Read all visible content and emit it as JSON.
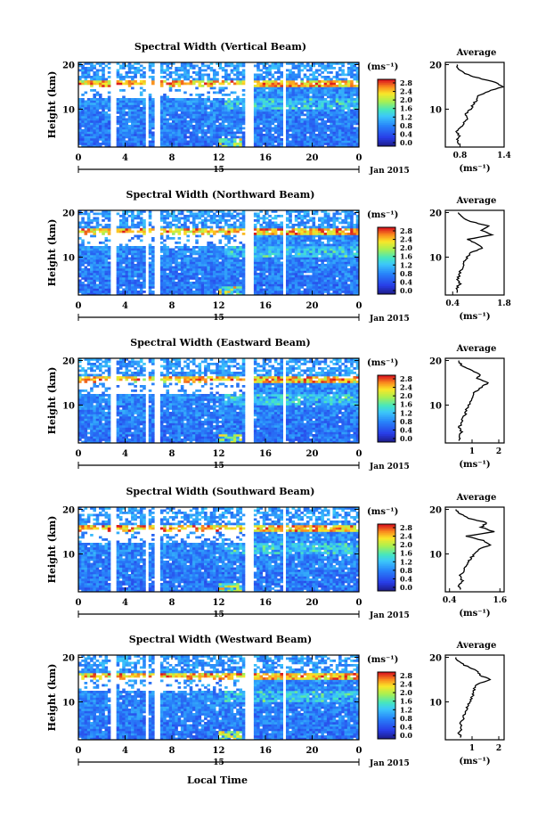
{
  "figure": {
    "xlabel": "Local Time",
    "date_label": "Jan 2015",
    "day_label": "15",
    "colorbar_unit": "(ms⁻¹)",
    "avg_title": "Average",
    "avg_unit": "(ms⁻¹)"
  },
  "chart_data": [
    {
      "type": "heatmap",
      "title": "Spectral Width (Vertical Beam)",
      "ylabel": "Height (km)",
      "xlim": [
        0,
        24
      ],
      "ylim": [
        1.5,
        20.5
      ],
      "xticks": [
        "0",
        "4",
        "8",
        "12",
        "16",
        "20",
        "0"
      ],
      "yticks": [
        10,
        20
      ],
      "colorbar_ticks": [
        "0.0",
        "0.4",
        "0.8",
        "1.2",
        "1.6",
        "2.0",
        "2.4",
        "2.8"
      ],
      "colorbar_range": [
        0.0,
        2.8
      ],
      "gaps_hours": [
        [
          1.9,
          2.1
        ],
        [
          2.8,
          3.2
        ],
        [
          4.4,
          4.6
        ],
        [
          5.8,
          6.1
        ],
        [
          6.5,
          7.0
        ],
        [
          14.3,
          15.0
        ],
        [
          17.4,
          17.8
        ]
      ],
      "average_profile": {
        "xlim": [
          0.6,
          1.4
        ],
        "xticks": [
          "0.8",
          "1.4"
        ],
        "yticks": [
          10,
          20
        ],
        "height_km": [
          2,
          3,
          4,
          5,
          6,
          7,
          8,
          9,
          10,
          11,
          12,
          13,
          14,
          15,
          16,
          17,
          18,
          19,
          20
        ],
        "value": [
          0.8,
          0.76,
          0.79,
          0.74,
          0.81,
          0.85,
          0.9,
          0.88,
          0.94,
          0.98,
          1.02,
          1.05,
          1.18,
          1.38,
          1.3,
          1.05,
          0.86,
          0.78,
          0.76
        ]
      }
    },
    {
      "type": "heatmap",
      "title": "Spectral Width (Northward Beam)",
      "ylabel": "Height (km)",
      "xlim": [
        0,
        24
      ],
      "ylim": [
        1.5,
        20.5
      ],
      "xticks": [
        "0",
        "4",
        "8",
        "12",
        "16",
        "20",
        "0"
      ],
      "yticks": [
        10,
        20
      ],
      "colorbar_ticks": [
        "0.0",
        "0.4",
        "0.8",
        "1.2",
        "1.6",
        "2.0",
        "2.4",
        "2.8"
      ],
      "colorbar_range": [
        0.0,
        2.8
      ],
      "gaps_hours": [
        [
          1.9,
          2.1
        ],
        [
          2.8,
          3.2
        ],
        [
          4.4,
          4.6
        ],
        [
          5.8,
          6.1
        ],
        [
          6.5,
          7.0
        ],
        [
          14.3,
          15.0
        ],
        [
          17.4,
          17.8
        ]
      ],
      "average_profile": {
        "xlim": [
          0.2,
          1.8
        ],
        "xticks": [
          "0.4",
          "1.8"
        ],
        "yticks": [
          10,
          20
        ],
        "height_km": [
          2,
          3,
          4,
          5,
          6,
          7,
          8,
          9,
          10,
          11,
          12,
          13,
          14,
          15,
          16,
          17,
          18,
          19,
          20
        ],
        "value": [
          0.55,
          0.5,
          0.6,
          0.52,
          0.58,
          0.62,
          0.68,
          0.72,
          0.8,
          0.9,
          1.2,
          1.05,
          0.8,
          1.5,
          1.2,
          1.35,
          0.9,
          0.65,
          0.55
        ]
      }
    },
    {
      "type": "heatmap",
      "title": "Spectral Width (Eastward Beam)",
      "ylabel": "Height (km)",
      "xlim": [
        0,
        24
      ],
      "ylim": [
        1.5,
        20.5
      ],
      "xticks": [
        "0",
        "4",
        "8",
        "12",
        "16",
        "20",
        "0"
      ],
      "yticks": [
        10,
        20
      ],
      "colorbar_ticks": [
        "0.0",
        "0.4",
        "0.8",
        "1.2",
        "1.6",
        "2.0",
        "2.4",
        "2.8"
      ],
      "colorbar_range": [
        0.0,
        2.8
      ],
      "gaps_hours": [
        [
          1.9,
          2.1
        ],
        [
          2.8,
          3.2
        ],
        [
          4.4,
          4.6
        ],
        [
          5.8,
          6.1
        ],
        [
          6.5,
          7.0
        ],
        [
          14.3,
          15.0
        ],
        [
          17.4,
          17.8
        ]
      ],
      "average_profile": {
        "xlim": [
          0.0,
          2.2
        ],
        "xticks": [
          "1",
          "2"
        ],
        "yticks": [
          10,
          20
        ],
        "height_km": [
          2,
          3,
          4,
          5,
          6,
          7,
          8,
          9,
          10,
          11,
          12,
          13,
          14,
          15,
          16,
          17,
          18,
          19,
          20
        ],
        "value": [
          0.55,
          0.48,
          0.6,
          0.52,
          0.62,
          0.65,
          0.75,
          0.8,
          0.88,
          0.95,
          1.05,
          1.1,
          1.35,
          1.6,
          1.2,
          1.3,
          0.9,
          0.6,
          0.5
        ]
      }
    },
    {
      "type": "heatmap",
      "title": "Spectral Width (Southward Beam)",
      "ylabel": "Height (km)",
      "xlim": [
        0,
        24
      ],
      "ylim": [
        1.5,
        20.5
      ],
      "xticks": [
        "0",
        "4",
        "8",
        "12",
        "16",
        "20",
        "0"
      ],
      "yticks": [
        10,
        20
      ],
      "colorbar_ticks": [
        "0.0",
        "0.4",
        "0.8",
        "1.2",
        "1.6",
        "2.0",
        "2.4",
        "2.8"
      ],
      "colorbar_range": [
        0.0,
        2.8
      ],
      "gaps_hours": [
        [
          1.9,
          2.1
        ],
        [
          2.8,
          3.2
        ],
        [
          4.4,
          4.6
        ],
        [
          5.8,
          6.1
        ],
        [
          6.5,
          7.0
        ],
        [
          14.3,
          15.0
        ],
        [
          17.4,
          17.8
        ]
      ],
      "average_profile": {
        "xlim": [
          0.3,
          1.7
        ],
        "xticks": [
          "0.4",
          "1.6"
        ],
        "yticks": [
          10,
          20
        ],
        "height_km": [
          2,
          3,
          4,
          5,
          6,
          7,
          8,
          9,
          10,
          11,
          12,
          13,
          14,
          15,
          16,
          17,
          18,
          19,
          20
        ],
        "value": [
          0.68,
          0.62,
          0.7,
          0.64,
          0.72,
          0.78,
          0.85,
          0.9,
          1.0,
          1.1,
          1.35,
          1.2,
          0.8,
          1.45,
          1.15,
          1.3,
          0.85,
          0.65,
          0.55
        ]
      }
    },
    {
      "type": "heatmap",
      "title": "Spectral Width (Westward Beam)",
      "ylabel": "Height (km)",
      "xlim": [
        0,
        24
      ],
      "ylim": [
        1.5,
        20.5
      ],
      "xticks": [
        "0",
        "4",
        "8",
        "12",
        "16",
        "20",
        "0"
      ],
      "yticks": [
        10,
        20
      ],
      "colorbar_ticks": [
        "0.0",
        "0.4",
        "0.8",
        "1.2",
        "1.6",
        "2.0",
        "2.4",
        "2.8"
      ],
      "colorbar_range": [
        0.0,
        2.8
      ],
      "gaps_hours": [
        [
          1.9,
          2.1
        ],
        [
          2.8,
          3.2
        ],
        [
          4.4,
          4.6
        ],
        [
          5.8,
          6.1
        ],
        [
          6.5,
          7.0
        ],
        [
          14.3,
          15.0
        ],
        [
          17.4,
          17.8
        ]
      ],
      "average_profile": {
        "xlim": [
          0.0,
          2.2
        ],
        "xticks": [
          "1",
          "2"
        ],
        "yticks": [
          10,
          20
        ],
        "height_km": [
          2,
          3,
          4,
          5,
          6,
          7,
          8,
          9,
          10,
          11,
          12,
          13,
          14,
          15,
          16,
          17,
          18,
          19,
          20
        ],
        "value": [
          0.6,
          0.52,
          0.62,
          0.55,
          0.65,
          0.7,
          0.78,
          0.82,
          0.92,
          1.0,
          1.05,
          1.1,
          1.2,
          1.7,
          1.3,
          1.2,
          0.8,
          0.5,
          0.4
        ]
      }
    }
  ]
}
